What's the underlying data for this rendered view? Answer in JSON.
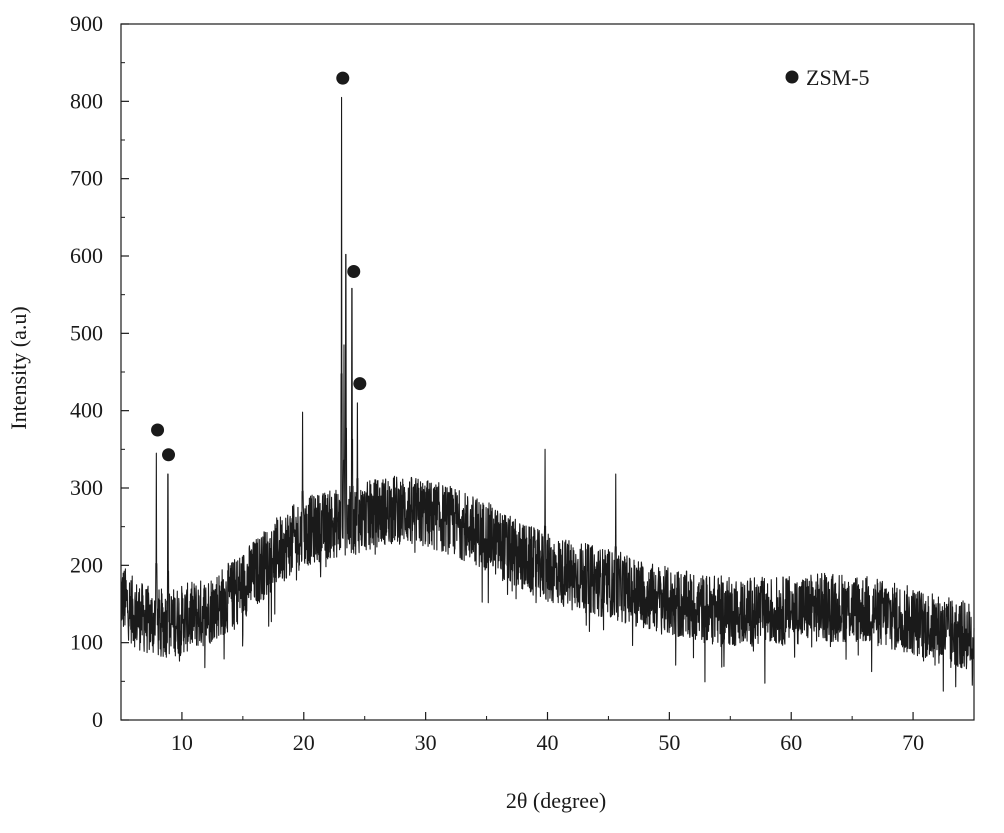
{
  "chart_data": {
    "type": "line",
    "title": "",
    "xlabel": "2θ (degree)",
    "ylabel": "Intensity (a.u)",
    "xlim": [
      5,
      75
    ],
    "ylim": [
      0,
      900
    ],
    "x_ticks": [
      10,
      20,
      30,
      40,
      50,
      60,
      70
    ],
    "y_ticks": [
      0,
      100,
      200,
      300,
      400,
      500,
      600,
      700,
      800,
      900
    ],
    "grid": false,
    "line_color": "#1a1a1a",
    "baseline": [
      [
        5,
        160
      ],
      [
        6,
        140
      ],
      [
        7,
        130
      ],
      [
        8,
        125
      ],
      [
        9,
        125
      ],
      [
        10,
        130
      ],
      [
        11,
        135
      ],
      [
        12,
        140
      ],
      [
        13,
        150
      ],
      [
        14,
        160
      ],
      [
        15,
        175
      ],
      [
        16,
        190
      ],
      [
        17,
        205
      ],
      [
        18,
        220
      ],
      [
        19,
        232
      ],
      [
        20,
        242
      ],
      [
        21,
        248
      ],
      [
        22,
        252
      ],
      [
        23,
        255
      ],
      [
        24,
        258
      ],
      [
        25,
        262
      ],
      [
        26,
        268
      ],
      [
        27,
        272
      ],
      [
        28,
        272
      ],
      [
        29,
        270
      ],
      [
        30,
        267
      ],
      [
        31,
        263
      ],
      [
        32,
        258
      ],
      [
        33,
        252
      ],
      [
        34,
        245
      ],
      [
        35,
        238
      ],
      [
        36,
        228
      ],
      [
        37,
        218
      ],
      [
        38,
        210
      ],
      [
        39,
        203
      ],
      [
        40,
        196
      ],
      [
        42,
        188
      ],
      [
        44,
        180
      ],
      [
        46,
        172
      ],
      [
        48,
        162
      ],
      [
        50,
        152
      ],
      [
        52,
        146
      ],
      [
        55,
        140
      ],
      [
        58,
        140
      ],
      [
        60,
        142
      ],
      [
        62,
        145
      ],
      [
        64,
        146
      ],
      [
        66,
        143
      ],
      [
        68,
        135
      ],
      [
        70,
        128
      ],
      [
        72,
        118
      ],
      [
        74,
        110
      ],
      [
        75,
        108
      ]
    ],
    "noise_amplitude": 45,
    "peaks": [
      {
        "x": 7.9,
        "y": 345
      },
      {
        "x": 8.85,
        "y": 318
      },
      {
        "x": 19.9,
        "y": 398
      },
      {
        "x": 23.1,
        "y": 805
      },
      {
        "x": 23.3,
        "y": 485
      },
      {
        "x": 23.45,
        "y": 602
      },
      {
        "x": 23.95,
        "y": 558
      },
      {
        "x": 24.4,
        "y": 410
      },
      {
        "x": 39.8,
        "y": 350
      },
      {
        "x": 45.6,
        "y": 318
      }
    ],
    "markers": [
      {
        "x": 8.0,
        "y": 375
      },
      {
        "x": 8.9,
        "y": 343
      },
      {
        "x": 23.2,
        "y": 830
      },
      {
        "x": 24.1,
        "y": 580
      },
      {
        "x": 24.6,
        "y": 435
      }
    ],
    "legend": {
      "label": "ZSM-5",
      "placement": "top-right"
    }
  }
}
